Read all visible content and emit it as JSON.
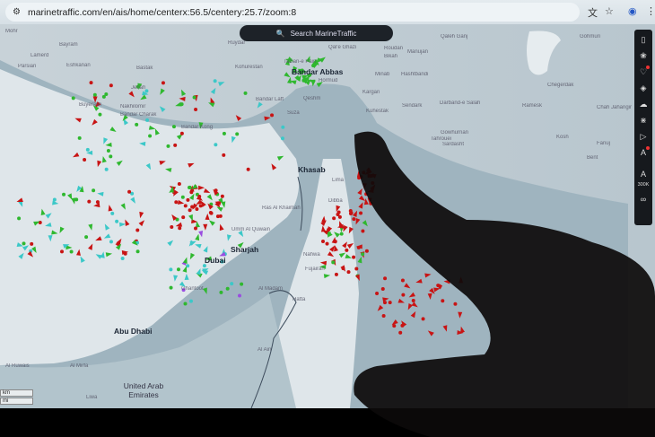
{
  "browser": {
    "url": "marinetraffic.com/en/ais/home/centerx:56.5/centery:25.7/zoom:8",
    "icons": [
      "tune-icon",
      "translate-icon",
      "star-icon",
      "profile-icon",
      "more-icon"
    ]
  },
  "search": {
    "placeholder": "Search MarineTraffic"
  },
  "toolbar": {
    "items": [
      "map-icon",
      "filters-icon",
      "favorites-icon",
      "layers-icon",
      "weather-icon",
      "measure-icon",
      "play-icon",
      "ais-icon"
    ],
    "zoom_level": "300K",
    "infinity": "∞"
  },
  "scale": {
    "km": "km",
    "mi": "mi"
  },
  "colors": {
    "cargo": "#2fb82f",
    "tanker": "#c81414",
    "passenger": "#1e5ad2",
    "other": "#3cc8c8",
    "pleasure": "#9a4ee0",
    "land": "#dfe6ea",
    "sea": "#a9bcc6"
  },
  "labels": {
    "mohr": "Mohr",
    "bayram": "Bayram",
    "lamerd": "Lamerd",
    "parsian": "Parsian",
    "eshkanan": "Eshkanan",
    "bastak": "Bastak",
    "jenah": "Jenah",
    "bushehr": "Buyerash",
    "nakhilomir": "Nakhilomir",
    "charak": "Bandar Charak",
    "kong": "Bandar Kong",
    "ruydar": "Ruydar",
    "kohurestan": "Kohurestan",
    "takht": "Tazian-e Pain",
    "bandar_abbas": "Bandar Abbas",
    "hormuz": "Hormud",
    "qeshm": "Qeshm",
    "laft": "Bandar Laft",
    "suza": "Suza",
    "qaleh": "Qaleh Ganj",
    "ghazi": "Qal'e Ghazi",
    "roudan": "Roudan",
    "manujan": "Manujan",
    "bikah": "Bikah",
    "minab": "Minab",
    "hashtbandi": "Hashtbandi",
    "kargan": "Kargan",
    "kuhestak": "Kuhestak",
    "sendark": "Sendark",
    "darband": "Darband-e Salah",
    "ramesk": "Ramesk",
    "chegerdak": "Chegerdak",
    "gohmuri": "Gohmuri",
    "chahjahangir": "Chah Jahangir",
    "tahrouei": "Tahrouei",
    "gowhurnan": "Gowhurnan",
    "sardasht": "Sardasht",
    "kosh": "Kosh",
    "fanuj": "Fanuj",
    "bent": "Bent",
    "khasab": "Khasab",
    "lima": "Lima",
    "dibba": "Dibba",
    "rak": "Ras Al Khaimah",
    "uaq": "Umm Al Quwain",
    "sharjah": "Sharjah",
    "dubai": "Dubai",
    "ghantoot": "Ghantoot",
    "abudhabi": "Abu Dhabi",
    "almirfa": "Al Mirfa",
    "ruwais": "Al Ruwais",
    "alain": "Al Ain",
    "madam": "Al Madam",
    "hatta": "Hatta",
    "fujairah": "Fujairah",
    "nahwa": "Nahwa",
    "uae": "United Arab Emirates",
    "liwa": "Liwa"
  }
}
